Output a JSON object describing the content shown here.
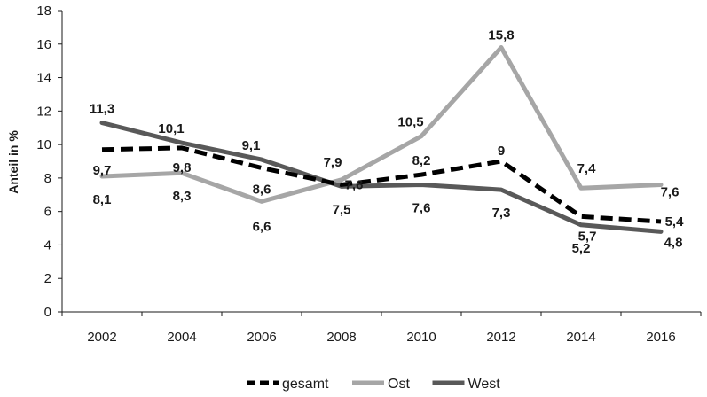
{
  "chart_data": {
    "type": "line",
    "ylabel": "Anteil in %",
    "xlabel": "",
    "ylim": [
      0,
      18
    ],
    "yticks": [
      0,
      2,
      4,
      6,
      8,
      10,
      12,
      14,
      16,
      18
    ],
    "ytick_labels": [
      "0",
      "2",
      "4",
      "6",
      "8",
      "10",
      "12",
      "14",
      "16",
      "18"
    ],
    "x": [
      2002,
      2004,
      2006,
      2008,
      2010,
      2012,
      2014,
      2016
    ],
    "x_labels": [
      "2002",
      "2004",
      "2006",
      "2008",
      "2010",
      "2012",
      "2014",
      "2016"
    ],
    "grid": false,
    "legend_position": "bottom",
    "series": [
      {
        "name": "gesamt",
        "values": [
          9.7,
          9.8,
          8.6,
          7.6,
          8.2,
          9,
          5.7,
          5.4
        ],
        "labels": [
          "9,7",
          "9,8",
          "8,6",
          "7,6",
          "8,2",
          "9",
          "5,7",
          "5,4"
        ],
        "color": "#000000",
        "style": "dashed"
      },
      {
        "name": "Ost",
        "values": [
          8.1,
          8.3,
          6.6,
          7.9,
          10.5,
          15.8,
          7.4,
          7.6
        ],
        "labels": [
          "8,1",
          "8,3",
          "6,6",
          "7,9",
          "10,5",
          "15,8",
          "7,4",
          "7,6"
        ],
        "color": "#a6a6a6",
        "style": "solid"
      },
      {
        "name": "West",
        "values": [
          11.3,
          10.1,
          9.1,
          7.5,
          7.6,
          7.3,
          5.2,
          4.8
        ],
        "labels": [
          "11,3",
          "10,1",
          "9,1",
          "7,5",
          "7,6",
          "7,3",
          "5,2",
          "4,8"
        ],
        "color": "#595959",
        "style": "solid"
      }
    ]
  }
}
